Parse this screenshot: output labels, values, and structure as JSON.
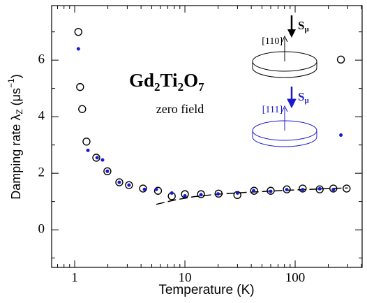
{
  "chart_data": {
    "type": "scatter",
    "xlabel": "Temperature (K)",
    "ylabel": {
      "main": "Damping rate λ",
      "sub": "Z",
      "unit": " (μs",
      "sup": "−1",
      "close": ")"
    },
    "compound": {
      "a": "Gd",
      "a_n": "2",
      "b": "Ti",
      "b_n": "2",
      "c": "O",
      "c_n": "7"
    },
    "annotation": "zero field",
    "inset": {
      "dir1": "[110]",
      "dir2": "[111]",
      "spin": "S",
      "spin_sub": "μ"
    },
    "log_x": true,
    "xlim": [
      0.618,
      405
    ],
    "ylim": [
      -1.33,
      7.93
    ],
    "xticks": [
      1,
      10,
      100
    ],
    "xminor": [
      0.7,
      0.8,
      0.9,
      2,
      3,
      4,
      5,
      6,
      7,
      8,
      9,
      20,
      30,
      40,
      50,
      60,
      70,
      80,
      90,
      200,
      300,
      400
    ],
    "yticks": [
      0,
      2,
      4,
      6
    ],
    "yminor": [
      -1,
      1,
      3,
      5,
      7
    ],
    "series": [
      {
        "color": "#000000",
        "marker": "open-circle",
        "x": [
          1.08,
          1.12,
          1.17,
          1.28,
          1.57,
          1.98,
          2.54,
          3.11,
          4.17,
          5.7,
          7.6,
          10,
          14,
          20.2,
          29.9,
          42.4,
          60,
          84,
          117,
          167,
          222,
          293,
          260
        ],
        "values": [
          7.0,
          5.05,
          4.27,
          3.12,
          2.55,
          2.07,
          1.68,
          1.58,
          1.46,
          1.38,
          1.19,
          1.26,
          1.26,
          1.28,
          1.23,
          1.38,
          1.38,
          1.43,
          1.46,
          1.43,
          1.46,
          1.46,
          6.02
        ]
      },
      {
        "color": "#1a1acc",
        "marker": "dot",
        "x": [
          1.08,
          1.32,
          1.6,
          1.79,
          1.98,
          2.54,
          3.11,
          4.3,
          5.5,
          7.6,
          10,
          14,
          20,
          30,
          42,
          60,
          84,
          117,
          167,
          222,
          260
        ],
        "values": [
          6.4,
          2.81,
          2.55,
          2.47,
          2.07,
          1.68,
          1.58,
          1.43,
          1.43,
          1.3,
          1.2,
          1.24,
          1.27,
          1.3,
          1.38,
          1.36,
          1.42,
          1.42,
          1.45,
          1.42,
          3.35
        ]
      }
    ],
    "fit": {
      "x": [
        5.5,
        8,
        12,
        20,
        35,
        60,
        100,
        180,
        300
      ],
      "values": [
        0.9,
        1.05,
        1.17,
        1.26,
        1.32,
        1.37,
        1.41,
        1.45,
        1.48
      ]
    }
  }
}
